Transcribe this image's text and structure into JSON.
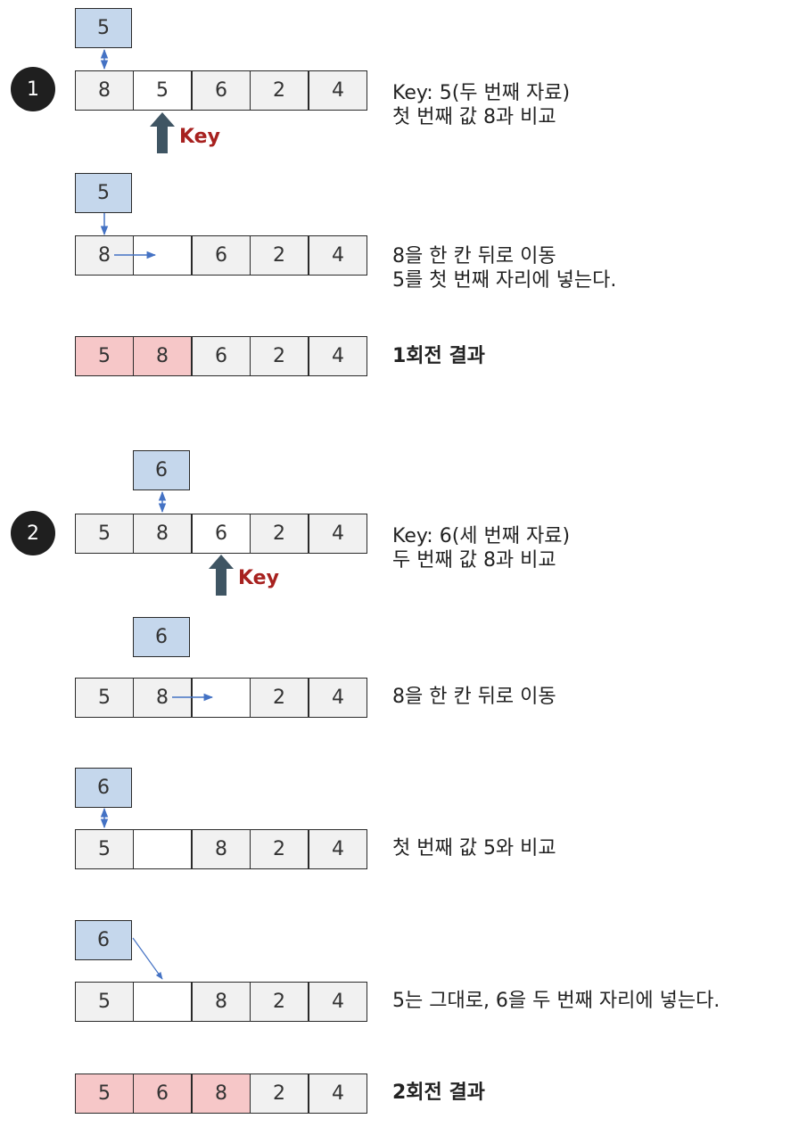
{
  "steps": [
    {
      "badge": "1"
    },
    {
      "badge": "2"
    }
  ],
  "key_label": "Key",
  "rows": {
    "r1_key": "5",
    "r1": [
      "8",
      "5",
      "6",
      "2",
      "4"
    ],
    "r1_note": [
      "Key: 5(두 번째 자료)",
      "첫 번째 값 8과 비교"
    ],
    "r2_key": "5",
    "r2": [
      "8",
      "",
      "6",
      "2",
      "4"
    ],
    "r2_note": [
      "8을 한 칸 뒤로 이동",
      "5를 첫 번째 자리에 넣는다."
    ],
    "r3": [
      "5",
      "8",
      "6",
      "2",
      "4"
    ],
    "r3_note": "1회전 결과",
    "r4_key": "6",
    "r4": [
      "5",
      "8",
      "6",
      "2",
      "4"
    ],
    "r4_note": [
      "Key: 6(세 번째 자료)",
      "두 번째 값 8과 비교"
    ],
    "r5_key": "6",
    "r5": [
      "5",
      "8",
      "",
      "2",
      "4"
    ],
    "r5_note": "8을 한 칸 뒤로 이동",
    "r6_key": "6",
    "r6": [
      "5",
      "",
      "8",
      "2",
      "4"
    ],
    "r6_note": "첫 번째 값 5와 비교",
    "r7_key": "6",
    "r7": [
      "5",
      "",
      "8",
      "2",
      "4"
    ],
    "r7_note": "5는 그대로, 6을 두 번째 자리에 넣는다.",
    "r8": [
      "5",
      "6",
      "8",
      "2",
      "4"
    ],
    "r8_note": "2회전 결과"
  },
  "colors": {
    "key_box": "#c5d7ec",
    "cell": "#f1f1f1",
    "highlight": "#f6c7c8",
    "arrow": "#4472c4",
    "key_arrow": "#3f5563",
    "key_text": "#a7211f",
    "badge": "#1f1f1f"
  }
}
